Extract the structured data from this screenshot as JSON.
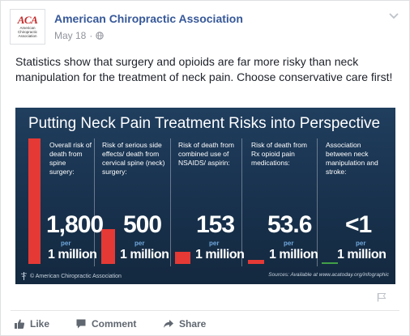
{
  "post": {
    "page_name": "American Chiropractic Association",
    "logo_mark": "ACA",
    "logo_sub": "American Chiropractic Association",
    "date": "May 18",
    "separator": "·",
    "text": "Statistics show that surgery and opioids are far more risky than neck manipulation for the treatment of neck pain. Choose conservative care first!"
  },
  "infographic": {
    "title": "Putting Neck Pain Treatment Risks into Perspective",
    "bar_color": "#e53935",
    "bar_color_small": "#43a047",
    "columns": [
      {
        "description": "Overall risk of death from spine surgery:",
        "value": "1,800",
        "per": "per",
        "unit": "1 million"
      },
      {
        "description": "Risk of serious side effects/ death from cervical spine (neck) surgery:",
        "value": "500",
        "per": "per",
        "unit": "1 million"
      },
      {
        "description": "Risk of death from combined use of NSAIDS/ aspirin:",
        "value": "153",
        "per": "per",
        "unit": "1 million"
      },
      {
        "description": "Risk of death from Rx opioid pain medications:",
        "value": "53.6",
        "per": "per",
        "unit": "1 million"
      },
      {
        "description": "Association between neck manipulation and stroke:",
        "value": "<1",
        "per": "per",
        "unit": "1 million"
      }
    ],
    "footer_left": "© American Chiropractic Association",
    "footer_right": "Sources: Available at www.acatoday.org/infographic"
  },
  "actions": {
    "like": "Like",
    "comment": "Comment",
    "share": "Share"
  },
  "icons": {
    "globe": "globe-icon",
    "chevron": "chevron-down-icon",
    "flag": "flag-icon",
    "like": "thumbs-up-icon",
    "comment": "comment-icon",
    "share": "share-arrow-icon"
  }
}
